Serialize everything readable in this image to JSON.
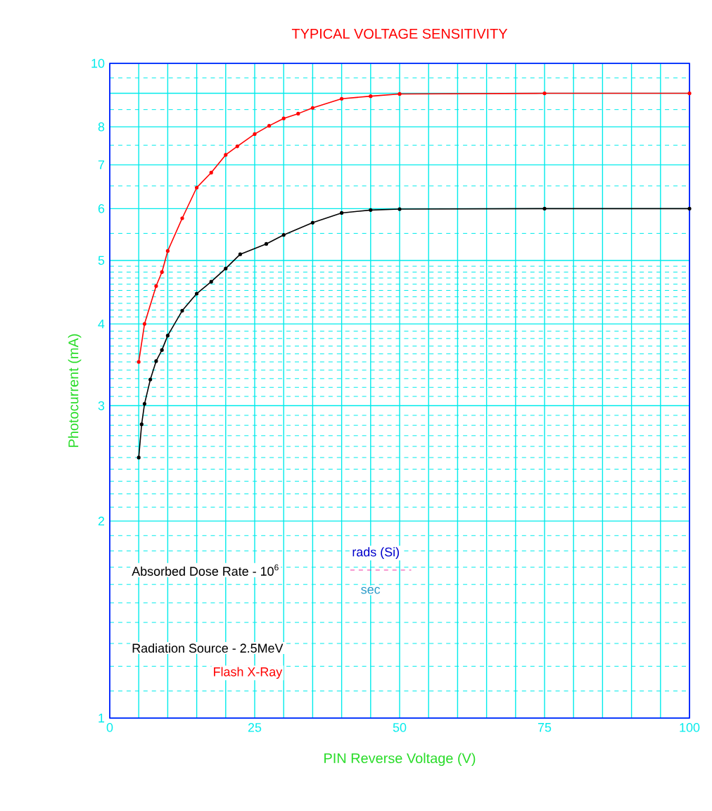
{
  "chart_data": {
    "type": "line",
    "title": "TYPICAL VOLTAGE SENSITIVITY",
    "xlabel": "PIN Reverse Voltage (V)",
    "ylabel": "Photocurrent (mA)",
    "series": [
      {
        "color": "#ff0000",
        "x": [
          5,
          6,
          8,
          9,
          10,
          12.5,
          15,
          17.5,
          20,
          22,
          25,
          27.5,
          30,
          32.5,
          35,
          40,
          45,
          50,
          75,
          100
        ],
        "values": [
          3.5,
          4.0,
          4.57,
          4.8,
          5.17,
          5.8,
          6.46,
          6.81,
          7.25,
          7.47,
          7.8,
          8.03,
          8.24,
          8.38,
          8.55,
          8.83,
          8.91,
          8.98,
          9.0,
          9.0
        ]
      },
      {
        "color": "#000000",
        "x": [
          5,
          5.5,
          6,
          7,
          8,
          9,
          10,
          12.5,
          15,
          17.5,
          20,
          22.5,
          27,
          30,
          35,
          40,
          45,
          50,
          75,
          100
        ],
        "values": [
          2.5,
          2.81,
          3.02,
          3.29,
          3.51,
          3.65,
          3.84,
          4.19,
          4.45,
          4.64,
          4.86,
          5.11,
          5.3,
          5.47,
          5.71,
          5.91,
          5.97,
          5.99,
          6.0,
          6.0
        ]
      }
    ],
    "log": "y",
    "xlim": [
      0,
      100
    ],
    "ylim": [
      1,
      10
    ],
    "xticks": [
      0,
      {
        "value": 5,
        "label": null
      },
      {
        "value": 10,
        "label": null
      },
      {
        "value": 15,
        "label": null
      },
      {
        "value": 20,
        "label": null
      },
      25,
      {
        "value": 30,
        "label": null
      },
      {
        "value": 35,
        "label": null
      },
      {
        "value": 40,
        "label": null
      },
      {
        "value": 45,
        "label": null
      },
      50,
      {
        "value": 55,
        "label": null
      },
      {
        "value": 60,
        "label": null
      },
      {
        "value": 65,
        "label": null
      },
      {
        "value": 70,
        "label": null
      },
      75,
      {
        "value": 80,
        "label": null
      },
      {
        "value": 85,
        "label": null
      },
      {
        "value": 90,
        "label": null
      },
      {
        "value": 95,
        "label": null
      },
      100
    ],
    "yticks": [
      1,
      {
        "value": 1.1,
        "label": null
      },
      {
        "value": 1.2,
        "label": null
      },
      {
        "value": 1.3,
        "label": null
      },
      {
        "value": 1.4,
        "label": null
      },
      {
        "value": 1.5,
        "label": null
      },
      {
        "value": 1.6,
        "label": null
      },
      {
        "value": 1.7,
        "label": null
      },
      {
        "value": 1.8,
        "label": null
      },
      {
        "value": 1.9,
        "label": null
      },
      2,
      {
        "value": 2.1,
        "label": null
      },
      {
        "value": 2.2,
        "label": null
      },
      {
        "value": 2.3,
        "label": null
      },
      {
        "value": 2.4,
        "label": null
      },
      {
        "value": 2.5,
        "label": null
      },
      {
        "value": 2.6,
        "label": null
      },
      {
        "value": 2.7,
        "label": null
      },
      {
        "value": 2.8,
        "label": null
      },
      {
        "value": 2.9,
        "label": null
      },
      3,
      {
        "value": 3.1,
        "label": null
      },
      {
        "value": 3.2,
        "label": null
      },
      {
        "value": 3.3,
        "label": null
      },
      {
        "value": 3.4,
        "label": null
      },
      {
        "value": 3.5,
        "label": null
      },
      {
        "value": 3.6,
        "label": null
      },
      {
        "value": 3.7,
        "label": null
      },
      {
        "value": 3.8,
        "label": null
      },
      {
        "value": 3.9,
        "label": null
      },
      4,
      {
        "value": 4.1,
        "label": null
      },
      {
        "value": 4.2,
        "label": null
      },
      {
        "value": 4.3,
        "label": null
      },
      {
        "value": 4.4,
        "label": null
      },
      {
        "value": 4.5,
        "label": null
      },
      {
        "value": 4.6,
        "label": null
      },
      {
        "value": 4.7,
        "label": null
      },
      {
        "value": 4.8,
        "label": null
      },
      {
        "value": 4.9,
        "label": null
      },
      5,
      {
        "value": 5.5,
        "label": null
      },
      6,
      {
        "value": 6.5,
        "label": null
      },
      7,
      {
        "value": 7.5,
        "label": null
      },
      8,
      {
        "value": 8.5,
        "label": null
      },
      {
        "value": 9,
        "label": null
      },
      {
        "value": 9.5,
        "label": null
      },
      10
    ],
    "grid": true,
    "marker": "circle",
    "line_style": "solid",
    "annotations": [
      "Absorbed Dose Rate - 10$^{6}$",
      "rads (Si)",
      "sec",
      "Radiation Source - 2.5MeV",
      "Flash X-Ray"
    ]
  }
}
